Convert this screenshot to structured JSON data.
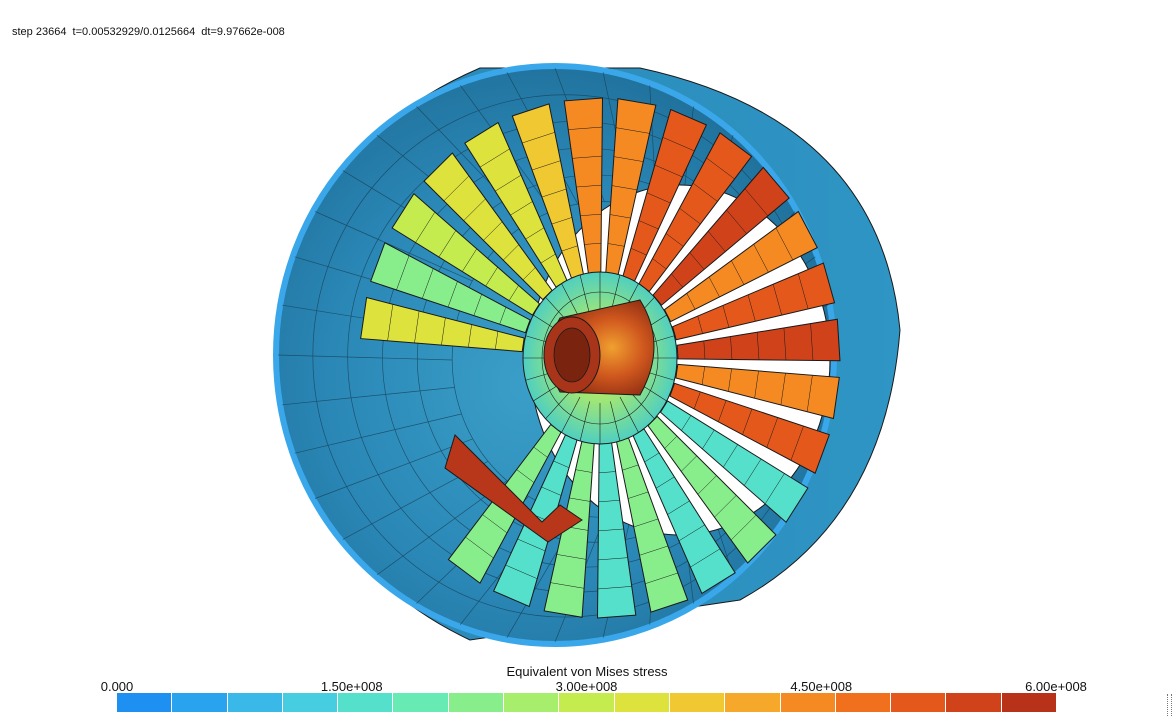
{
  "status": {
    "text": "step 23664  t=0.00532929/0.0125664  dt=9.97662e-008"
  },
  "legend": {
    "title": "Equivalent von Mises stress",
    "ticks": [
      {
        "label": "0.000",
        "value": 0
      },
      {
        "label": "1.50e+008",
        "value": 150000000
      },
      {
        "label": "3.00e+008",
        "value": 300000000
      },
      {
        "label": "4.50e+008",
        "value": 450000000
      },
      {
        "label": "6.00e+008",
        "value": 600000000
      }
    ],
    "range": [
      0,
      600000000
    ],
    "colors": [
      "#1e90f2",
      "#2aa3ee",
      "#3ab8e8",
      "#46cde0",
      "#55e0cc",
      "#68eab4",
      "#88ee8c",
      "#a6ee6c",
      "#c4ec4e",
      "#dde23c",
      "#f0c832",
      "#f6a82a",
      "#f58a22",
      "#f0701e",
      "#e4581c",
      "#cf421a",
      "#b73218"
    ]
  },
  "scene": {
    "colors": {
      "casing": "#2a87b6",
      "casing_dark": "#1f6f99",
      "rim": "#3aa7ea",
      "blade_low": "#3ab8e8",
      "blade_mid": "#c4ec4e",
      "blade_high": "#e4581c",
      "hub": "#7fe0a0",
      "shaft": "#c2451c",
      "mesh": "#1a1a1a"
    },
    "blade_count": 28
  }
}
